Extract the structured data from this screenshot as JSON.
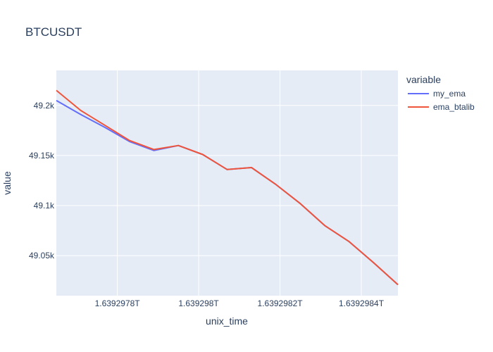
{
  "chart_data": {
    "type": "line",
    "title": "BTCUSDT",
    "xlabel": "unix_time",
    "ylabel": "value",
    "legend_title": "variable",
    "legend_position": "right",
    "grid": true,
    "xlim": [
      1639297650000,
      1639298490000
    ],
    "ylim": [
      49010,
      49235
    ],
    "x_ticks": [
      {
        "value": 1639297800000,
        "label": "1.6392978T"
      },
      {
        "value": 1639298000000,
        "label": "1.639298T"
      },
      {
        "value": 1639298200000,
        "label": "1.6392982T"
      },
      {
        "value": 1639298400000,
        "label": "1.6392984T"
      }
    ],
    "y_ticks": [
      {
        "value": 49050,
        "label": "49.05k"
      },
      {
        "value": 49100,
        "label": "49.1k"
      },
      {
        "value": 49150,
        "label": "49.15k"
      },
      {
        "value": 49200,
        "label": "49.2k"
      }
    ],
    "x": [
      1639297650000,
      1639297710000,
      1639297770000,
      1639297830000,
      1639297890000,
      1639297950000,
      1639298010000,
      1639298070000,
      1639298130000,
      1639298190000,
      1639298250000,
      1639298310000,
      1639298370000,
      1639298430000,
      1639298490000
    ],
    "series": [
      {
        "name": "my_ema",
        "color": "#636efa",
        "values": [
          49205,
          49191,
          49178,
          49164,
          49155,
          49160,
          49151,
          49136,
          49138,
          49121,
          49102,
          49080,
          49064,
          49043,
          49021
        ]
      },
      {
        "name": "ema_btalib",
        "color": "#ef553b",
        "values": [
          49215,
          49195,
          49180,
          49165,
          49156,
          49160,
          49151,
          49136,
          49138,
          49121,
          49102,
          49080,
          49064,
          49043,
          49021
        ]
      }
    ],
    "colors": {
      "plot_background": "#e5ecf6",
      "grid": "#ffffff",
      "text": "#2a3f5f"
    }
  }
}
